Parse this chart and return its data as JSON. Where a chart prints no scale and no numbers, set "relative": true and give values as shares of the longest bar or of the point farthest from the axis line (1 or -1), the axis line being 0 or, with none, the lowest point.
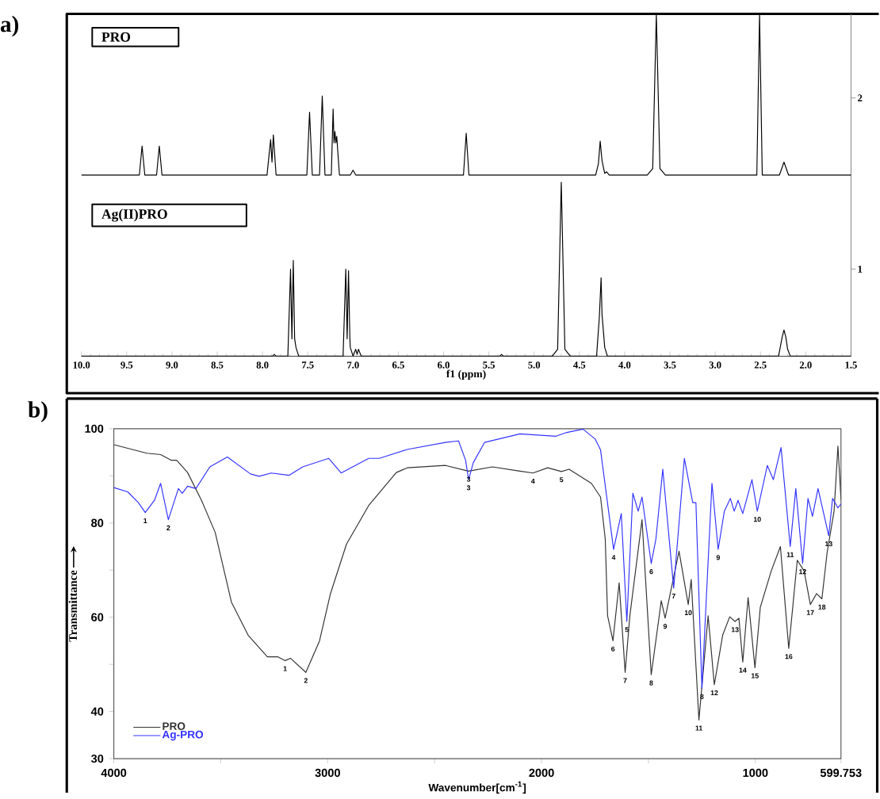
{
  "chart_data": [
    {
      "type": "line",
      "title": "a)",
      "relative": true,
      "xlim": [
        10,
        1.5
      ],
      "tick_labels": false,
      "legend": false,
      "marker": "none",
      "line_style": "solid",
      "annotations": [
        "2"
      ],
      "series": [
        {
          "name": "PRO",
          "color": "#000000",
          "x": [
            10.0,
            9.36,
            9.33,
            9.3,
            9.17,
            9.14,
            9.11,
            7.95,
            7.91,
            7.895,
            7.88,
            7.85,
            7.51,
            7.48,
            7.45,
            7.37,
            7.34,
            7.31,
            7.24,
            7.22,
            7.21,
            7.2,
            7.19,
            7.18,
            7.15,
            7.03,
            7.0,
            6.97,
            5.78,
            5.75,
            5.72,
            4.32,
            4.29,
            4.27,
            4.25,
            4.22,
            4.2,
            4.17,
            3.75,
            3.69,
            3.65,
            3.61,
            3.55,
            2.54,
            2.51,
            2.48,
            2.29,
            2.24,
            2.19,
            1.5
          ],
          "values": [
            0,
            0,
            0.18,
            0,
            0,
            0.18,
            0,
            0,
            0.22,
            0.08,
            0.25,
            0,
            0,
            0.39,
            0,
            0,
            0.49,
            0,
            0,
            0.41,
            0.2,
            0.27,
            0.2,
            0.24,
            0,
            0,
            0.03,
            0,
            0,
            0.26,
            0,
            0,
            0.07,
            0.21,
            0.09,
            0.01,
            0.02,
            0,
            0,
            0.04,
            1,
            0.04,
            0,
            0,
            1,
            0,
            0,
            0.08,
            0,
            0
          ]
        }
      ]
    },
    {
      "type": "line",
      "relative": true,
      "xlim": [
        10,
        1.5
      ],
      "xlabel": "f1 (ppm)",
      "legend": false,
      "marker": "none",
      "line_style": "solid",
      "annotations": [
        "1"
      ],
      "xticks": [
        {
          "value": 10,
          "label": "10.0"
        },
        {
          "value": 9.5,
          "label": "9.5"
        },
        {
          "value": 9,
          "label": "9.0"
        },
        {
          "value": 8.5,
          "label": "8.5"
        },
        {
          "value": 8,
          "label": "8.0"
        },
        {
          "value": 7.5,
          "label": "7.5"
        },
        {
          "value": 7,
          "label": "7.0"
        },
        {
          "value": 6.5,
          "label": "6.5"
        },
        {
          "value": 6,
          "label": "6.0"
        },
        {
          "value": 5.5,
          "label": "5.5"
        },
        {
          "value": 5,
          "label": "5.0"
        },
        {
          "value": 4.5,
          "label": "4.5"
        },
        {
          "value": 4,
          "label": "4.0"
        },
        {
          "value": 3.5,
          "label": "3.5"
        },
        {
          "value": 3,
          "label": "3.0"
        },
        {
          "value": 2.5,
          "label": "2.5"
        },
        {
          "value": 2,
          "label": "2.0"
        },
        {
          "value": 1.5,
          "label": "1.5"
        }
      ],
      "series": [
        {
          "name": "Ag(II)PRO",
          "color": "#000000",
          "x": [
            10.0,
            7.89,
            7.87,
            7.85,
            7.72,
            7.69,
            7.675,
            7.66,
            7.645,
            7.63,
            7.6,
            7.11,
            7.08,
            7.065,
            7.05,
            7.035,
            7.03,
            7.0,
            6.97,
            6.955,
            6.94,
            6.91,
            5.38,
            5.36,
            5.34,
            4.8,
            4.74,
            4.7,
            4.66,
            4.6,
            4.31,
            4.28,
            4.26,
            4.25,
            4.22,
            4.19,
            2.3,
            2.26,
            2.24,
            2.22,
            2.2,
            2.17,
            1.5
          ],
          "values": [
            0,
            0,
            0.01,
            0,
            0,
            0.5,
            0.1,
            0.55,
            0.1,
            0.05,
            0,
            0,
            0.5,
            0.1,
            0.49,
            0.1,
            0.05,
            0,
            0.04,
            0.01,
            0.04,
            0,
            0,
            0.01,
            0,
            0,
            0.04,
            1,
            0.04,
            0,
            0,
            0.22,
            0.45,
            0.24,
            0.05,
            0,
            0,
            0.11,
            0.15,
            0.11,
            0.04,
            0,
            0
          ]
        }
      ]
    },
    {
      "type": "line",
      "title": "b)",
      "xlabel": "Wavenumber[cm$^{-1}$]",
      "ylabel": "Transmittance",
      "xlim": [
        4000,
        599.753
      ],
      "ylim": [
        30,
        100
      ],
      "legend": "bottom left",
      "marker": "none",
      "line_style": "solid",
      "grid": false,
      "xticks": [
        4000,
        {
          "value": 3500,
          "label": null
        },
        3000,
        {
          "value": 2500,
          "label": null
        },
        2000,
        {
          "value": 1500,
          "label": null
        },
        1000,
        599.753
      ],
      "yticks": [
        30,
        40,
        {
          "value": 50,
          "label": null
        },
        60,
        {
          "value": 70,
          "label": null
        },
        80,
        {
          "value": 90,
          "label": null
        },
        100
      ],
      "series": [
        {
          "name": "PRO",
          "color": "#333333",
          "x": [
            4000,
            3846,
            3781,
            3731,
            3706,
            3655,
            3590,
            3526,
            3450,
            3372,
            3282,
            3232,
            3199,
            3174,
            3102,
            3038,
            2987,
            2912,
            2808,
            2679,
            2628,
            2449,
            2341,
            2230,
            2101,
            2040,
            1971,
            1907,
            1871,
            1767,
            1724,
            1702,
            1691,
            1666,
            1637,
            1609,
            1587,
            1530,
            1487,
            1440,
            1422,
            1357,
            1314,
            1300,
            1264,
            1221,
            1192,
            1153,
            1120,
            1095,
            1077,
            1059,
            1034,
            1002,
            977,
            926,
            883,
            844,
            804,
            772,
            743,
            714,
            689,
            664,
            632,
            614,
            599.753
          ],
          "values": [
            96.6,
            94.8,
            94.5,
            93.3,
            93.3,
            90.7,
            84.8,
            78,
            63.2,
            56.2,
            51.6,
            51.6,
            50.8,
            51.3,
            48.3,
            55,
            65,
            75.5,
            83.7,
            90.7,
            91.7,
            92.2,
            91.0,
            91.9,
            91,
            90.6,
            91.7,
            90.9,
            91.4,
            88.4,
            85.5,
            76.6,
            60.3,
            55,
            67.3,
            48.3,
            60.3,
            80.7,
            47.8,
            63.5,
            59.8,
            74,
            62.7,
            68,
            38.2,
            60.3,
            45.7,
            56.2,
            60.1,
            59.1,
            59.8,
            50.5,
            64.2,
            49.3,
            62.1,
            69.8,
            75,
            53.4,
            72.1,
            69.8,
            62.7,
            65,
            63.9,
            73.9,
            82.5,
            96.3,
            85
          ]
        },
        {
          "name": "Ag-PRO",
          "color": "#3333ff",
          "x": [
            4000,
            3935,
            3885,
            3853,
            3810,
            3781,
            3745,
            3698,
            3680,
            3655,
            3616,
            3551,
            3469,
            3361,
            3321,
            3264,
            3181,
            3117,
            2995,
            2937,
            2883,
            2808,
            2758,
            2628,
            2449,
            2388,
            2355,
            2341,
            2319,
            2266,
            2101,
            1932,
            1882,
            1806,
            1749,
            1724,
            1663,
            1627,
            1601,
            1573,
            1548,
            1530,
            1487,
            1465,
            1433,
            1382,
            1332,
            1293,
            1278,
            1250,
            1203,
            1174,
            1145,
            1117,
            1099,
            1081,
            1059,
            1016,
            991,
            944,
            916,
            880,
            837,
            811,
            779,
            754,
            733,
            707,
            657,
            639,
            614,
            599.753
          ],
          "values": [
            87.5,
            86.6,
            84.3,
            82.2,
            84.8,
            88.4,
            80.7,
            87.3,
            86.3,
            87.8,
            87.3,
            91.9,
            94,
            90.4,
            89.9,
            90.6,
            90.1,
            91.9,
            93.7,
            90.6,
            91.9,
            93.7,
            93.7,
            95.6,
            97.1,
            97.4,
            93.3,
            89.2,
            92.8,
            97.1,
            98.9,
            98.4,
            99.2,
            99.9,
            97.8,
            95.5,
            74.4,
            82,
            59.1,
            86.3,
            82.5,
            85.5,
            71.4,
            76.6,
            91.4,
            66.2,
            93.7,
            84.3,
            84.3,
            44.9,
            88.4,
            74.4,
            82.5,
            85.2,
            82.5,
            84.8,
            82,
            89.2,
            82.5,
            92.2,
            89.2,
            96,
            75,
            87.3,
            71.4,
            85.2,
            81.4,
            87.3,
            77.3,
            85.2,
            83.2,
            84
          ]
        }
      ],
      "annotations": [
        {
          "text": "1",
          "x": 3199,
          "y": 50.8
        },
        {
          "text": "2",
          "x": 3102,
          "y": 48.3
        },
        {
          "text": "3",
          "x": 2341,
          "y": 91.0
        },
        {
          "text": "4",
          "x": 2040,
          "y": 90.6
        },
        {
          "text": "5",
          "x": 1907,
          "y": 90.9
        },
        {
          "text": "6",
          "x": 1666,
          "y": 55
        },
        {
          "text": "7",
          "x": 1609,
          "y": 48.3
        },
        {
          "text": "8",
          "x": 1487,
          "y": 47.8
        },
        {
          "text": "9",
          "x": 1422,
          "y": 59.8
        },
        {
          "text": "10",
          "x": 1314,
          "y": 62.7
        },
        {
          "text": "11",
          "x": 1264,
          "y": 38.2
        },
        {
          "text": "12",
          "x": 1192,
          "y": 45.7
        },
        {
          "text": "13",
          "x": 1095,
          "y": 59.1
        },
        {
          "text": "14",
          "x": 1059,
          "y": 50.5
        },
        {
          "text": "15",
          "x": 1002,
          "y": 49.3
        },
        {
          "text": "16",
          "x": 844,
          "y": 53.4
        },
        {
          "text": "17",
          "x": 743,
          "y": 62.7
        },
        {
          "text": "18",
          "x": 689,
          "y": 63.9
        },
        {
          "text": "1",
          "x": 3853,
          "y": 82.2
        },
        {
          "text": "2",
          "x": 3745,
          "y": 80.7
        },
        {
          "text": "3",
          "x": 2341,
          "y": 89.2
        },
        {
          "text": "4",
          "x": 1663,
          "y": 74.4
        },
        {
          "text": "5",
          "x": 1601,
          "y": 59.1
        },
        {
          "text": "6",
          "x": 1487,
          "y": 71.4
        },
        {
          "text": "7",
          "x": 1382,
          "y": 66.2
        },
        {
          "text": "8",
          "x": 1250,
          "y": 44.9
        },
        {
          "text": "9",
          "x": 1174,
          "y": 74.4
        },
        {
          "text": "10",
          "x": 991,
          "y": 82.5
        },
        {
          "text": "11",
          "x": 837,
          "y": 75
        },
        {
          "text": "12",
          "x": 779,
          "y": 71.4
        },
        {
          "text": "13",
          "x": 657,
          "y": 77.3
        }
      ]
    }
  ]
}
